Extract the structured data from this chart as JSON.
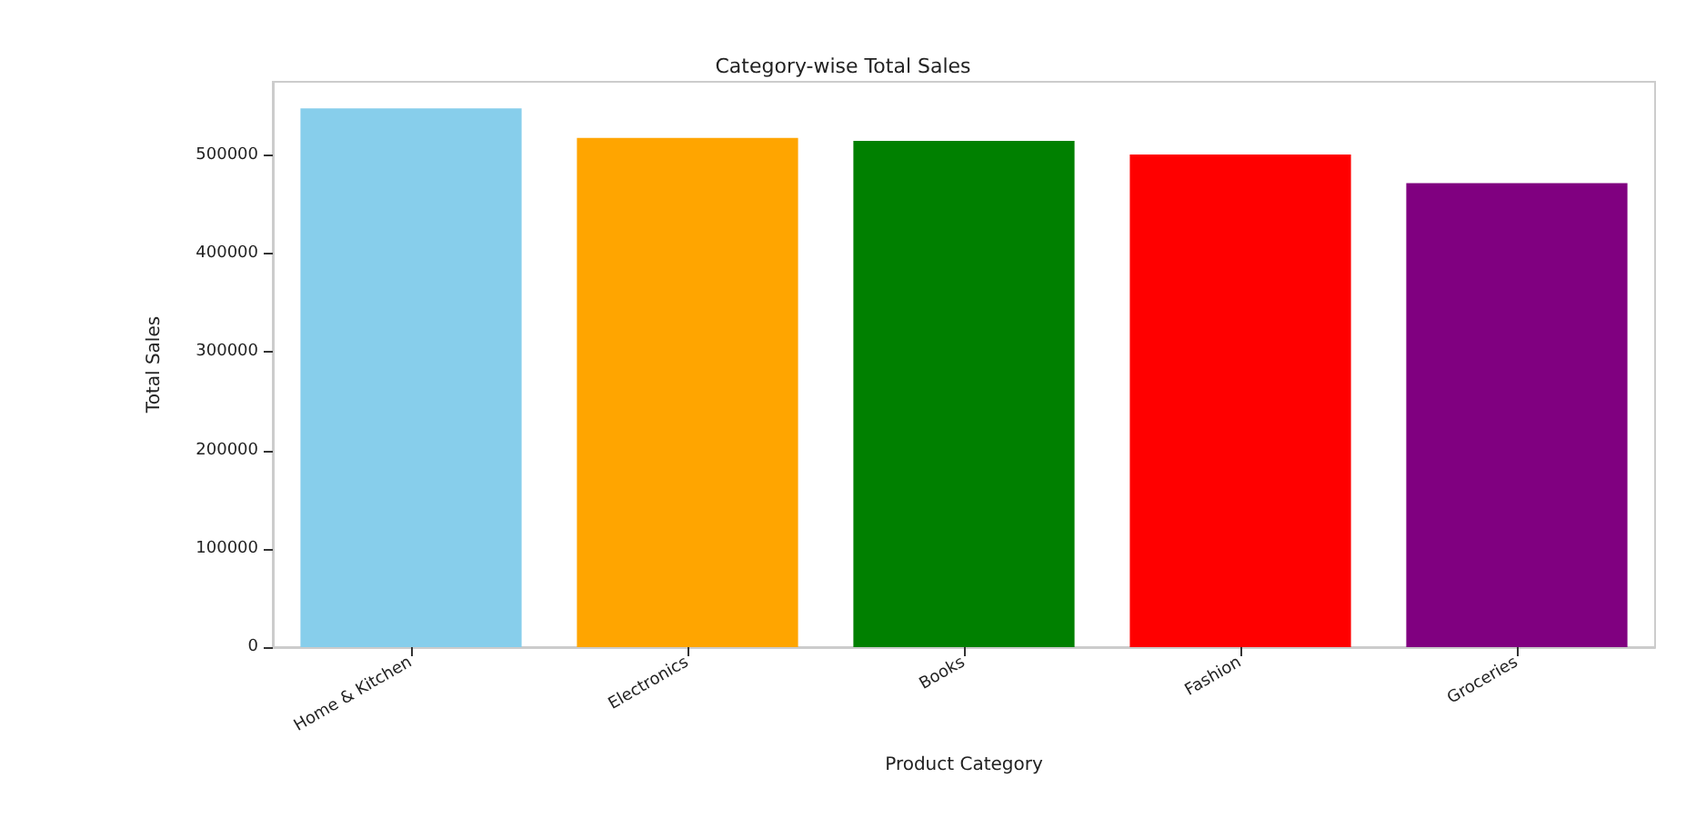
{
  "chart_data": {
    "type": "bar",
    "title": "Category-wise Total Sales",
    "xlabel": "Product Category",
    "ylabel": "Total Sales",
    "categories": [
      "Home & Kitchen",
      "Electronics",
      "Books",
      "Fashion",
      "Groceries"
    ],
    "values": [
      548000,
      518000,
      515000,
      501000,
      472000
    ],
    "colors": [
      "#87ceeb",
      "#ffa500",
      "#008000",
      "#ff0000",
      "#800080"
    ],
    "ylim": [
      0,
      575000
    ],
    "yticks": [
      0,
      100000,
      200000,
      300000,
      400000,
      500000
    ],
    "grid": false
  }
}
